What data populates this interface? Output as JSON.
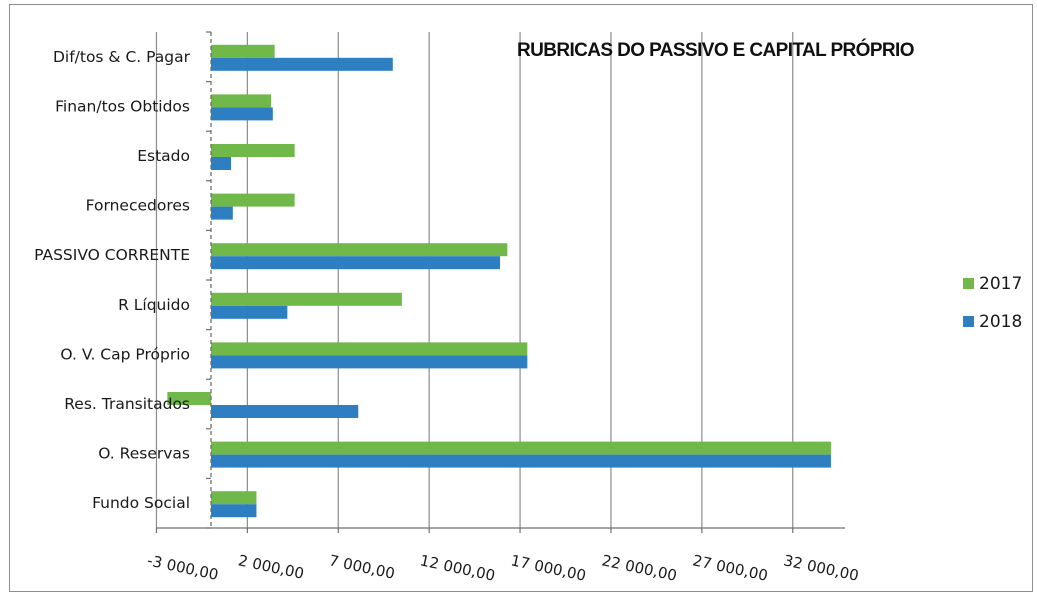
{
  "chart_data": {
    "type": "bar",
    "orientation": "horizontal",
    "title": "RUBRICAS DO PASSIVO E CAPITAL PRÓPRIO",
    "xlabel": "",
    "ylabel": "",
    "xlim": [
      -3000,
      35000
    ],
    "grid": true,
    "legend_position": "right",
    "categories": [
      "Dif/tos & C. Pagar",
      "Finan/tos Obtidos",
      "Estado",
      "Fornecedores",
      "PASSIVO CORRENTE",
      "R Líquido",
      "O. V. Cap Próprio",
      "Res. Transitados",
      "O. Reservas",
      "Fundo Social"
    ],
    "series": [
      {
        "name": "2017",
        "color": "#70b84a",
        "values": [
          3500,
          3300,
          4600,
          4600,
          16300,
          10500,
          17400,
          -2400,
          34100,
          2500
        ]
      },
      {
        "name": "2018",
        "color": "#2e7fc1",
        "values": [
          10000,
          3400,
          1100,
          1200,
          15900,
          4200,
          17400,
          8100,
          34100,
          2500
        ]
      }
    ],
    "ticks": [
      -3000,
      2000,
      7000,
      12000,
      17000,
      22000,
      27000,
      32000
    ],
    "tick_labels": [
      "-3 000,00",
      "2 000,00",
      "7 000,00",
      "12 000,00",
      "17 000,00",
      "22 000,00",
      "27 000,00",
      "32 000,00"
    ]
  }
}
